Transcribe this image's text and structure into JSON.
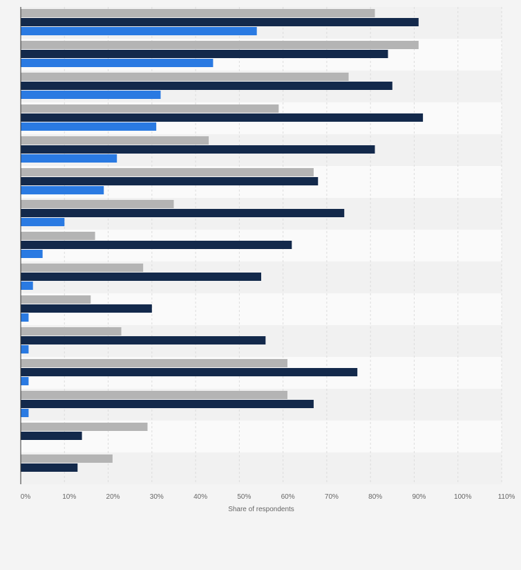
{
  "chart_data": {
    "type": "bar",
    "orientation": "horizontal",
    "xlabel": "Share of respondents",
    "xlim": [
      0,
      110
    ],
    "ticks": [
      {
        "value": 0,
        "label": "0%"
      },
      {
        "value": 10,
        "label": "10%"
      },
      {
        "value": 20,
        "label": "20%"
      },
      {
        "value": 30,
        "label": "30%"
      },
      {
        "value": 40,
        "label": "40%"
      },
      {
        "value": 50,
        "label": "50%"
      },
      {
        "value": 60,
        "label": "60%"
      },
      {
        "value": 70,
        "label": "70%"
      },
      {
        "value": 80,
        "label": "80%"
      },
      {
        "value": 90,
        "label": "90%"
      },
      {
        "value": 100,
        "label": "100%"
      },
      {
        "value": 110,
        "label": "110%"
      }
    ],
    "grid": true,
    "group_count": 15,
    "series": [
      {
        "color": "#b4b4b4",
        "values": [
          81,
          91,
          75,
          59,
          43,
          67,
          35,
          17,
          28,
          16,
          23,
          61,
          61,
          29,
          21
        ]
      },
      {
        "color": "#13294b",
        "values": [
          91,
          84,
          85,
          92,
          81,
          68,
          74,
          62,
          55,
          30,
          56,
          77,
          67,
          14,
          13
        ]
      },
      {
        "color": "#2a7ae2",
        "values": [
          54,
          44,
          32,
          31,
          22,
          19,
          10,
          5,
          2.8,
          1.8,
          1.8,
          1.8,
          1.8,
          null,
          null
        ]
      }
    ]
  }
}
